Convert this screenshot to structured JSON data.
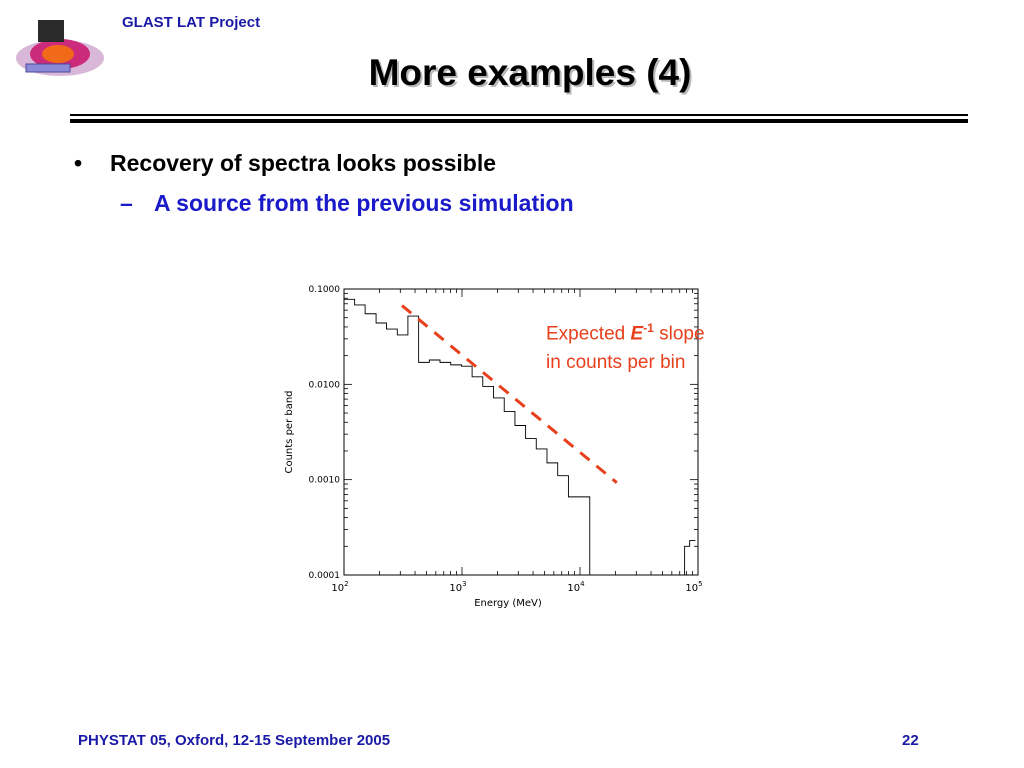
{
  "header": {
    "project_label": "GLAST LAT Project",
    "logo_icon": "glast-satellite-logo"
  },
  "slide": {
    "title": "More examples (4)",
    "bullet": "Recovery of spectra looks possible",
    "sub_bullet": "A source from the previous simulation",
    "bullet_marker": "•",
    "sub_bullet_marker": "–"
  },
  "annotation": {
    "line1_prefix": "Expected ",
    "symbol": "E",
    "exponent": "-1",
    "line1_suffix": " slope",
    "line2": "in counts per bin",
    "color": "#e8401c"
  },
  "chart_data": {
    "type": "line",
    "xlabel": "Energy (MeV)",
    "ylabel": "Counts per band",
    "x_scale": "log",
    "y_scale": "log",
    "xlim": [
      100,
      100000
    ],
    "ylim": [
      0.0001,
      0.1
    ],
    "x_tick_labels": [
      {
        "value": 100,
        "base": "10",
        "exp": "2"
      },
      {
        "value": 1000,
        "base": "10",
        "exp": "3"
      },
      {
        "value": 10000,
        "base": "10",
        "exp": "4"
      },
      {
        "value": 100000,
        "base": "10",
        "exp": "5"
      }
    ],
    "y_tick_labels": [
      {
        "value": 0.1,
        "label": "0.1000"
      },
      {
        "value": 0.01,
        "label": "0.0100"
      },
      {
        "value": 0.001,
        "label": "0.0010"
      },
      {
        "value": 0.0001,
        "label": "0.0001"
      }
    ],
    "grid": false,
    "histogram": {
      "name": "",
      "edges": [
        100,
        123,
        151,
        187,
        229,
        283,
        348,
        429,
        529,
        651,
        802,
        989,
        1218,
        1500,
        1850,
        2280,
        2810,
        3460,
        4260,
        5250,
        6470,
        7980,
        9830,
        12100,
        14900
      ],
      "values": [
        0.078,
        0.068,
        0.055,
        0.044,
        0.038,
        0.033,
        0.052,
        0.017,
        0.018,
        0.017,
        0.016,
        0.0155,
        0.012,
        0.0095,
        0.0072,
        0.0052,
        0.0037,
        0.0027,
        0.0021,
        0.0015,
        0.0011,
        0.00066,
        0.00066,
        0.0001
      ],
      "tail_edges": [
        77000,
        85000,
        95000
      ],
      "tail_values": [
        0.0002,
        0.00023
      ]
    },
    "reference_line": {
      "name": "Expected E-1 slope in counts per bin",
      "points": [
        [
          310,
          0.067
        ],
        [
          20500,
          0.00093
        ]
      ],
      "color": "#e8401c",
      "style": "dashed"
    }
  }
}
